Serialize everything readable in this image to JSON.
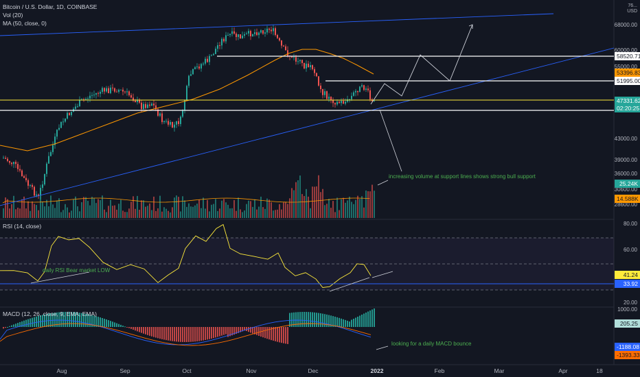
{
  "header": {
    "title": "Bitcoin / U.S. Dollar, 1D, COINBASE",
    "vol_label": "Vol (20)",
    "ma_label": "MA (50, close, 0)",
    "currency": "USD",
    "top_scale": "76..."
  },
  "price_scale": {
    "ticks": [
      "68000.00",
      "60000.00",
      "55000.00",
      "43000.00",
      "39000.00",
      "36000.00",
      "33000.00",
      "30600.00",
      "28600.00"
    ],
    "tags": [
      {
        "label": "58520.71",
        "bg": "#ffffff",
        "fg": "#131722"
      },
      {
        "label": "53396.83",
        "bg": "#ff9800",
        "fg": "#131722"
      },
      {
        "label": "51995.00",
        "bg": "#ffffff",
        "fg": "#131722"
      },
      {
        "label": "47331.62",
        "bg": "#26a69a",
        "fg": "#ffffff"
      },
      {
        "label": "02:20:25",
        "bg": "#26a69a",
        "fg": "#ffffff"
      },
      {
        "label": "25.24K",
        "bg": "#26a69a",
        "fg": "#ffffff"
      },
      {
        "label": "14.588K",
        "bg": "#ff9800",
        "fg": "#131722"
      }
    ]
  },
  "rsi": {
    "title": "RSI (14, close)",
    "ticks": [
      "80.00",
      "60.00",
      "20.00"
    ],
    "tags": [
      {
        "label": "41.24",
        "bg": "#ffeb3b",
        "fg": "#131722"
      },
      {
        "label": "33.92",
        "bg": "#2962ff",
        "fg": "#ffffff"
      }
    ]
  },
  "macd": {
    "title": "MACD (12, 26, close, 9, EMA, EMA)",
    "ticks": [
      "1000.00",
      "0.00",
      "-1000.00"
    ],
    "tags": [
      {
        "label": "205.25",
        "bg": "#b2dfdb",
        "fg": "#131722"
      },
      {
        "label": "-1188.08",
        "bg": "#2962ff",
        "fg": "#ffffff"
      },
      {
        "label": "-1393.33",
        "bg": "#ff6d00",
        "fg": "#131722"
      }
    ]
  },
  "time_axis": [
    "Aug",
    "Sep",
    "Oct",
    "Nov",
    "Dec",
    "2022",
    "Feb",
    "Mar",
    "Apr",
    "18"
  ],
  "annotations": {
    "volume_note": "increasing volume at support lines shows strong bull support",
    "rsi_note": "daily RSI Bear market LOW",
    "macd_note": "looking for a daily MACD bounce"
  },
  "chart_data": {
    "type": "candlestick",
    "symbol": "Bitcoin / U.S. Dollar",
    "interval": "1D",
    "exchange": "COINBASE",
    "support_resistance_levels": [
      58520.71,
      51995.0,
      48300,
      46000
    ],
    "ma50_last": 53396.83,
    "last_price": 47331.62,
    "volume_last": "25.24K",
    "volume_ma_last": "14.588K",
    "rsi_last": 41.24,
    "rsi_low_line": 33.92,
    "macd_hist_last": 205.25,
    "macd_line_last": -1188.08,
    "macd_signal_last": -1393.33,
    "colors": {
      "up": "#26a69a",
      "down": "#ef5350",
      "ma": "#ff9800",
      "trend": "#2962ff",
      "rsi": "#ffeb3b"
    }
  }
}
